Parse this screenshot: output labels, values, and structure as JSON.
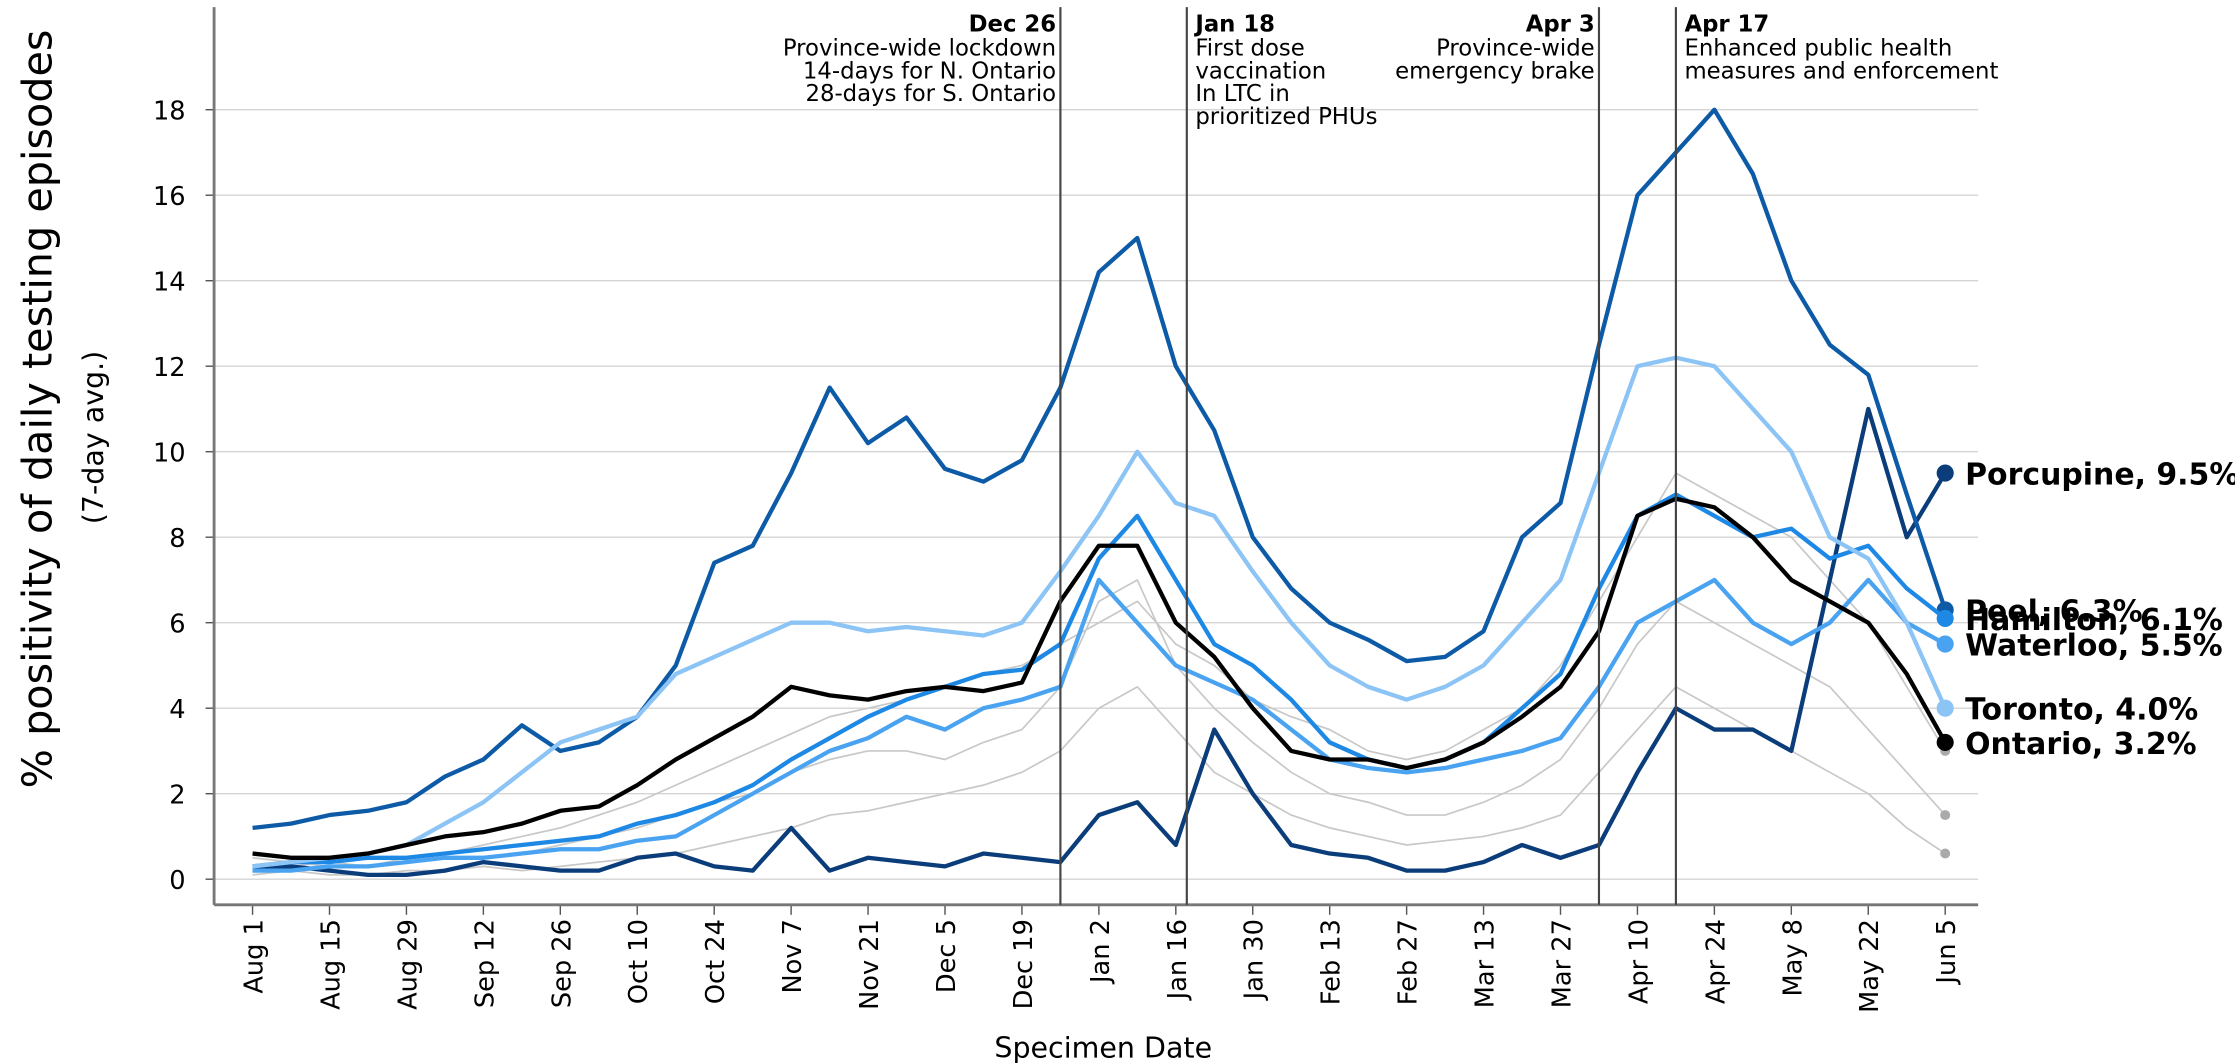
{
  "chart_data": {
    "type": "line",
    "ylabel": "% positivity of daily testing episodes",
    "ylabel_sub": "(7-day avg.)",
    "xlabel": "Specimen Date",
    "x": [
      0,
      7,
      14,
      21,
      28,
      35,
      42,
      49,
      56,
      63,
      70,
      77,
      84,
      91,
      98,
      105,
      112,
      119,
      126,
      133,
      140,
      147,
      154,
      161,
      168,
      175,
      182,
      189,
      196,
      203,
      210,
      217,
      224,
      231,
      238,
      245,
      252,
      259,
      266,
      273,
      280,
      287,
      294,
      301,
      308
    ],
    "xlim": [
      -7,
      314
    ],
    "xticks": [
      {
        "value": 0,
        "label": "Aug 1"
      },
      {
        "value": 14,
        "label": "Aug 15"
      },
      {
        "value": 28,
        "label": "Aug 29"
      },
      {
        "value": 42,
        "label": "Sep 12"
      },
      {
        "value": 56,
        "label": "Sep 26"
      },
      {
        "value": 70,
        "label": "Oct 10"
      },
      {
        "value": 84,
        "label": "Oct 24"
      },
      {
        "value": 98,
        "label": "Nov 7"
      },
      {
        "value": 112,
        "label": "Nov 21"
      },
      {
        "value": 126,
        "label": "Dec 5"
      },
      {
        "value": 140,
        "label": "Dec 19"
      },
      {
        "value": 154,
        "label": "Jan 2"
      },
      {
        "value": 168,
        "label": "Jan 16"
      },
      {
        "value": 182,
        "label": "Jan 30"
      },
      {
        "value": 196,
        "label": "Feb 13"
      },
      {
        "value": 210,
        "label": "Feb 27"
      },
      {
        "value": 224,
        "label": "Mar 13"
      },
      {
        "value": 238,
        "label": "Mar 27"
      },
      {
        "value": 252,
        "label": "Apr 10"
      },
      {
        "value": 266,
        "label": "Apr 24"
      },
      {
        "value": 280,
        "label": "May 8"
      },
      {
        "value": 294,
        "label": "May 22"
      },
      {
        "value": 308,
        "label": "Jun 5"
      }
    ],
    "ylim": [
      -0.6,
      20.4
    ],
    "yticks": [
      0,
      2,
      4,
      6,
      8,
      10,
      12,
      14,
      16,
      18
    ],
    "grid": true,
    "annotations": [
      {
        "x": 147,
        "date": "Dec 26",
        "lines": [
          "Province-wide lockdown",
          "14-days for N. Ontario",
          "28-days for S. Ontario"
        ]
      },
      {
        "x": 170,
        "date": "Jan 18",
        "lines": [
          "First dose",
          "vaccination",
          "In LTC in",
          "prioritized PHUs"
        ]
      },
      {
        "x": 245,
        "date": "Apr 3",
        "lines": [
          "Province-wide",
          "emergency brake"
        ]
      },
      {
        "x": 259,
        "date": "Apr 17",
        "lines": [
          "Enhanced public health",
          "measures and enforcement"
        ]
      }
    ],
    "series": [
      {
        "color": "#c8c8c8",
        "values": [
          0.2,
          0.3,
          0.4,
          0.3,
          0.5,
          0.6,
          0.8,
          1.0,
          1.2,
          1.5,
          1.8,
          2.2,
          2.6,
          3.0,
          3.4,
          3.8,
          4.0,
          4.2,
          4.5,
          4.8,
          5.0,
          5.5,
          6.0,
          6.5,
          5.5,
          5.0,
          4.2,
          3.8,
          3.5,
          3.0,
          2.8,
          3.0,
          3.5,
          4.0,
          5.0,
          6.5,
          8.0,
          9.5,
          9.0,
          8.5,
          8.0,
          7.0,
          6.0,
          4.5,
          3.0
        ]
      },
      {
        "color": "#c8c8c8",
        "values": [
          0.5,
          0.4,
          0.3,
          0.3,
          0.4,
          0.5,
          0.5,
          0.6,
          0.8,
          1.0,
          1.2,
          1.5,
          1.8,
          2.0,
          2.5,
          2.8,
          3.0,
          3.0,
          2.8,
          3.2,
          3.5,
          4.5,
          6.5,
          7.0,
          5.0,
          4.0,
          3.2,
          2.5,
          2.0,
          1.8,
          1.5,
          1.5,
          1.8,
          2.2,
          2.8,
          4.0,
          5.5,
          6.5,
          6.0,
          5.5,
          5.0,
          4.5,
          3.5,
          2.5,
          1.5
        ]
      },
      {
        "color": "#c8c8c8",
        "values": [
          0.1,
          0.2,
          0.1,
          0.1,
          0.2,
          0.2,
          0.3,
          0.2,
          0.3,
          0.4,
          0.5,
          0.6,
          0.8,
          1.0,
          1.2,
          1.5,
          1.6,
          1.8,
          2.0,
          2.2,
          2.5,
          3.0,
          4.0,
          4.5,
          3.5,
          2.5,
          2.0,
          1.5,
          1.2,
          1.0,
          0.8,
          0.9,
          1.0,
          1.2,
          1.5,
          2.5,
          3.5,
          4.5,
          4.0,
          3.5,
          3.0,
          2.5,
          2.0,
          1.2,
          0.6
        ]
      },
      {
        "name": "Porcupine",
        "label": "Porcupine, 9.5%",
        "color": "#0a3d7a",
        "values": [
          0.3,
          0.3,
          0.2,
          0.1,
          0.1,
          0.2,
          0.4,
          0.3,
          0.2,
          0.2,
          0.5,
          0.6,
          0.3,
          0.2,
          1.2,
          0.2,
          0.5,
          0.4,
          0.3,
          0.6,
          0.5,
          0.4,
          1.5,
          1.8,
          0.8,
          3.5,
          2.0,
          0.8,
          0.6,
          0.5,
          0.2,
          0.2,
          0.4,
          0.8,
          0.5,
          0.8,
          2.5,
          4.0,
          3.5,
          3.5,
          3.0,
          7.0,
          11.0,
          8.0,
          9.5
        ]
      },
      {
        "name": "Peel",
        "label": "Peel, 6.3%",
        "color": "#0d5aa7",
        "values": [
          1.2,
          1.3,
          1.5,
          1.6,
          1.8,
          2.4,
          2.8,
          3.6,
          3.0,
          3.2,
          3.8,
          5.0,
          7.4,
          7.8,
          9.5,
          11.5,
          10.2,
          10.8,
          9.6,
          9.3,
          9.8,
          11.5,
          14.2,
          15.0,
          12.0,
          10.5,
          8.0,
          6.8,
          6.0,
          5.6,
          5.1,
          5.2,
          5.8,
          8.0,
          8.8,
          12.5,
          16.0,
          17.0,
          18.0,
          16.5,
          14.0,
          12.5,
          11.8,
          9.0,
          6.3
        ]
      },
      {
        "name": "Hamilton",
        "label": "Hamilton, 6.1%",
        "color": "#1e88e5",
        "values": [
          0.3,
          0.4,
          0.4,
          0.5,
          0.5,
          0.6,
          0.7,
          0.8,
          0.9,
          1.0,
          1.3,
          1.5,
          1.8,
          2.2,
          2.8,
          3.3,
          3.8,
          4.2,
          4.5,
          4.8,
          4.9,
          5.5,
          7.5,
          8.5,
          7.0,
          5.5,
          5.0,
          4.2,
          3.2,
          2.8,
          2.6,
          2.8,
          3.2,
          4.0,
          4.8,
          6.8,
          8.5,
          9.0,
          8.5,
          8.0,
          8.2,
          7.5,
          7.8,
          6.8,
          6.1
        ]
      },
      {
        "name": "Waterloo",
        "label": "Waterloo, 5.5%",
        "color": "#4aa3f0",
        "values": [
          0.2,
          0.2,
          0.3,
          0.3,
          0.4,
          0.5,
          0.5,
          0.6,
          0.7,
          0.7,
          0.9,
          1.0,
          1.5,
          2.0,
          2.5,
          3.0,
          3.3,
          3.8,
          3.5,
          4.0,
          4.2,
          4.5,
          7.0,
          6.0,
          5.0,
          4.6,
          4.2,
          3.5,
          2.8,
          2.6,
          2.5,
          2.6,
          2.8,
          3.0,
          3.3,
          4.5,
          6.0,
          6.5,
          7.0,
          6.0,
          5.5,
          6.0,
          7.0,
          6.0,
          5.5
        ]
      },
      {
        "name": "Toronto",
        "label": "Toronto, 4.0%",
        "color": "#8cc4f5",
        "values": [
          0.3,
          0.4,
          0.5,
          0.6,
          0.8,
          1.3,
          1.8,
          2.5,
          3.2,
          3.5,
          3.8,
          4.8,
          5.2,
          5.6,
          6.0,
          6.0,
          5.8,
          5.9,
          5.8,
          5.7,
          6.0,
          7.2,
          8.5,
          10.0,
          8.8,
          8.5,
          7.2,
          6.0,
          5.0,
          4.5,
          4.2,
          4.5,
          5.0,
          6.0,
          7.0,
          9.5,
          12.0,
          12.2,
          12.0,
          11.0,
          10.0,
          8.0,
          7.5,
          6.0,
          4.0
        ]
      },
      {
        "name": "Ontario",
        "label": "Ontario, 3.2%",
        "color": "#000000",
        "values": [
          0.6,
          0.5,
          0.5,
          0.6,
          0.8,
          1.0,
          1.1,
          1.3,
          1.6,
          1.7,
          2.2,
          2.8,
          3.3,
          3.8,
          4.5,
          4.3,
          4.2,
          4.4,
          4.5,
          4.4,
          4.6,
          6.5,
          7.8,
          7.8,
          6.0,
          5.2,
          4.0,
          3.0,
          2.8,
          2.8,
          2.6,
          2.8,
          3.2,
          3.8,
          4.5,
          5.8,
          8.5,
          8.9,
          8.7,
          8.0,
          7.0,
          6.5,
          6.0,
          4.8,
          3.2
        ]
      }
    ]
  }
}
